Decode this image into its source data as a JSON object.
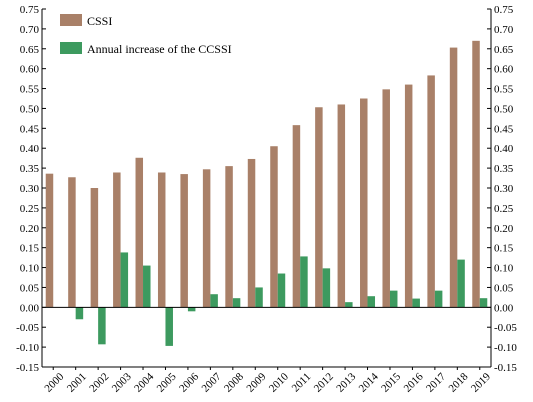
{
  "chart_data": {
    "type": "bar",
    "title": "",
    "xlabel": "",
    "ylabel": "",
    "ylim": [
      -0.15,
      0.75
    ],
    "y_ticks": [
      "-0.15",
      "-0.10",
      "-0.05",
      "0.00",
      "0.05",
      "0.10",
      "0.15",
      "0.20",
      "0.25",
      "0.30",
      "0.35",
      "0.40",
      "0.45",
      "0.50",
      "0.55",
      "0.60",
      "0.65",
      "0.70",
      "0.75"
    ],
    "y_axes": "both",
    "x_tick_rotation": "diagonal",
    "grid": false,
    "legend_position": "top-left",
    "categories": [
      "2000",
      "2001",
      "2002",
      "2003",
      "2004",
      "2005",
      "2006",
      "2007",
      "2008",
      "2009",
      "2010",
      "2011",
      "2012",
      "2013",
      "2014",
      "2015",
      "2016",
      "2017",
      "2018",
      "2019"
    ],
    "series": [
      {
        "name": "CSSI",
        "color": "#a98068",
        "values": [
          0.336,
          0.327,
          0.3,
          0.339,
          0.376,
          0.339,
          0.335,
          0.347,
          0.355,
          0.373,
          0.405,
          0.458,
          0.503,
          0.51,
          0.525,
          0.548,
          0.56,
          0.583,
          0.653,
          0.67
        ]
      },
      {
        "name": "Annual increase of the CCSSI",
        "color": "#3d9a5f",
        "values": [
          null,
          -0.03,
          -0.093,
          0.138,
          0.105,
          -0.097,
          -0.01,
          0.033,
          0.023,
          0.05,
          0.085,
          0.128,
          0.098,
          0.013,
          0.028,
          0.042,
          0.022,
          0.042,
          0.12,
          0.023
        ]
      }
    ]
  }
}
